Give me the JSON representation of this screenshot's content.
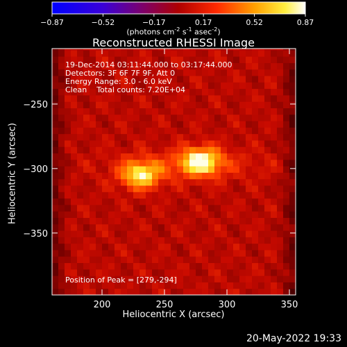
{
  "chart_data": {
    "type": "heatmap",
    "title": "Reconstructed RHESSI Image",
    "xlabel": "Heliocentric X (arcsec)",
    "ylabel": "Heliocentric Y (arcsec)",
    "xlim": [
      160,
      355
    ],
    "ylim": [
      -398,
      -207
    ],
    "xticks": [
      200,
      250,
      300,
      350
    ],
    "yticks": [
      -250,
      -300,
      -350
    ],
    "colorbar": {
      "min": -0.87,
      "max": 0.87,
      "ticks": [
        "-0.87",
        "-0.52",
        "-0.17",
        "0.17",
        "0.52",
        "0.87"
      ],
      "units": {
        "prefix": "(photons cm",
        "sup1": "-2",
        "mid1": " s",
        "sup2": "-1",
        "mid2": " asec",
        "sup3": "-2",
        "suffix": ")"
      }
    },
    "sources": [
      {
        "x": 231,
        "y": -305,
        "value": 0.8
      },
      {
        "x": 279,
        "y": -294,
        "value": 0.87
      }
    ],
    "annotations": {
      "time": "19-Dec-2014 03:11:44.000 to 03:17:44.000",
      "detectors": "Detectors: 3F 6F 7F 9F, Att 0",
      "energy": "Energy Range: 3.0 - 6.0 keV",
      "method": "Clean    Total counts: 7.20E+04",
      "peak": "Position of Peak = [279,-294]"
    },
    "datestamp": "20-May-2022 19:33"
  }
}
